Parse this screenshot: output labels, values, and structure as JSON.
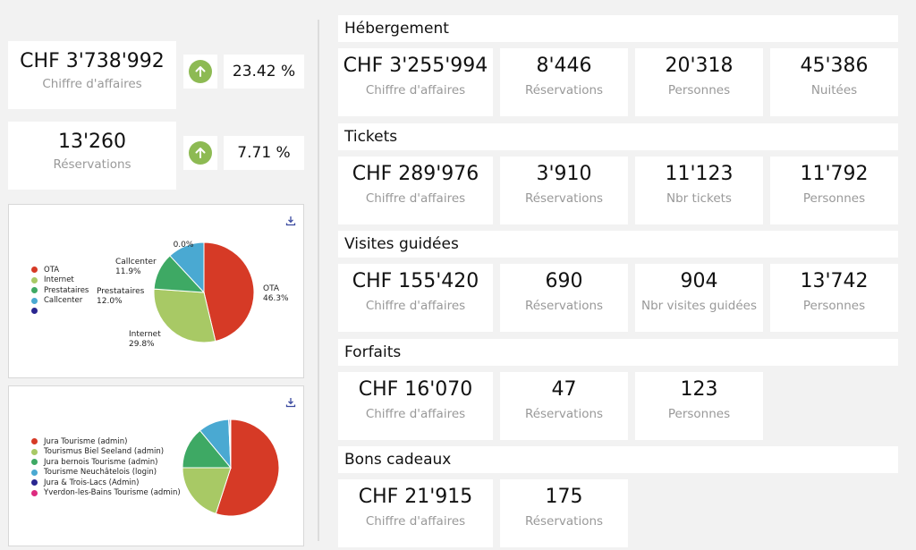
{
  "summary": {
    "revenue": {
      "value": "CHF 3'738'992",
      "label": "Chiffre d'affaires",
      "change": "23.42 %"
    },
    "reservations": {
      "value": "13'260",
      "label": "Réservations",
      "change": "7.71 %"
    }
  },
  "colors": {
    "up_arrow": "#8dba53"
  },
  "sections": [
    {
      "title": "Hébergement",
      "kpis": [
        {
          "value": "CHF 3'255'994",
          "label": "Chiffre d'affaires"
        },
        {
          "value": "8'446",
          "label": "Réservations"
        },
        {
          "value": "20'318",
          "label": "Personnes"
        },
        {
          "value": "45'386",
          "label": "Nuitées"
        }
      ]
    },
    {
      "title": "Tickets",
      "kpis": [
        {
          "value": "CHF 289'976",
          "label": "Chiffre d'affaires"
        },
        {
          "value": "3'910",
          "label": "Réservations"
        },
        {
          "value": "11'123",
          "label": "Nbr tickets"
        },
        {
          "value": "11'792",
          "label": "Personnes"
        }
      ]
    },
    {
      "title": "Visites guidées",
      "kpis": [
        {
          "value": "CHF 155'420",
          "label": "Chiffre d'affaires"
        },
        {
          "value": "690",
          "label": "Réservations"
        },
        {
          "value": "904",
          "label": "Nbr visites guidées"
        },
        {
          "value": "13'742",
          "label": "Personnes"
        }
      ]
    },
    {
      "title": "Forfaits",
      "kpis": [
        {
          "value": "CHF 16'070",
          "label": "Chiffre d'affaires"
        },
        {
          "value": "47",
          "label": "Réservations"
        },
        {
          "value": "123",
          "label": "Personnes"
        }
      ]
    },
    {
      "title": "Bons cadeaux",
      "kpis": [
        {
          "value": "CHF 21'915",
          "label": "Chiffre d'affaires"
        },
        {
          "value": "175",
          "label": "Réservations"
        }
      ]
    }
  ],
  "chart_data": [
    {
      "type": "pie",
      "categories": [
        "OTA",
        "Internet",
        "Prestataires",
        "Callcenter",
        ""
      ],
      "values": [
        46.3,
        29.8,
        12.0,
        11.9,
        0.0
      ],
      "data_labels": [
        "OTA\n46.3%",
        "Internet\n29.8%",
        "Prestataires\n12.0%",
        "Callcenter\n11.9%",
        "0.0%"
      ],
      "colors": [
        "#d63a26",
        "#a8c965",
        "#3ea964",
        "#4aa9d2",
        "#2a2690"
      ],
      "legend": "left"
    },
    {
      "type": "pie",
      "categories": [
        "Jura Tourisme (admin)",
        "Tourismus Biel Seeland (admin)",
        "Jura bernois Tourisme (admin)",
        "Tourisme Neuchâtelois (login)",
        "Jura & Trois-Lacs (Admin)",
        "Yverdon-les-Bains Tourisme (admin)"
      ],
      "values": [
        55,
        20,
        14,
        10.3,
        0.4,
        0.3
      ],
      "colors": [
        "#d63a26",
        "#a8c965",
        "#3ea964",
        "#4aa9d2",
        "#2a2690",
        "#dd2b7f"
      ],
      "legend": "left"
    }
  ]
}
